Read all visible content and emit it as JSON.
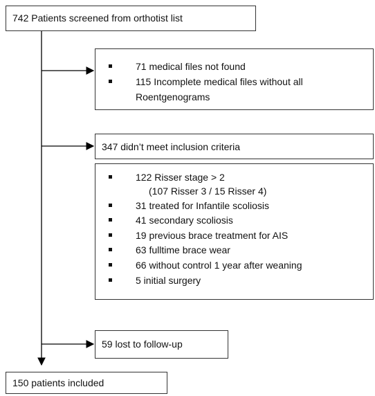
{
  "start": {
    "label": "742 Patients screened from orthotist list"
  },
  "exclusions": [
    {
      "items": [
        "71 medical files not found",
        "115 Incomplete medical files without all",
        "Roentgenograms"
      ]
    },
    {
      "title": "347 didn’t meet inclusion criteria",
      "items": [
        "122 Risser stage > 2",
        "(107 Risser 3 / 15 Risser 4)",
        "31 treated for Infantile scoliosis",
        "41 secondary scoliosis",
        "19 previous brace treatment for AIS",
        "63 fulltime brace wear",
        "66 without control 1 year after weaning",
        "5 initial surgery"
      ]
    },
    {
      "title": "59 lost to follow-up"
    }
  ],
  "end": {
    "label": "150 patients included"
  }
}
